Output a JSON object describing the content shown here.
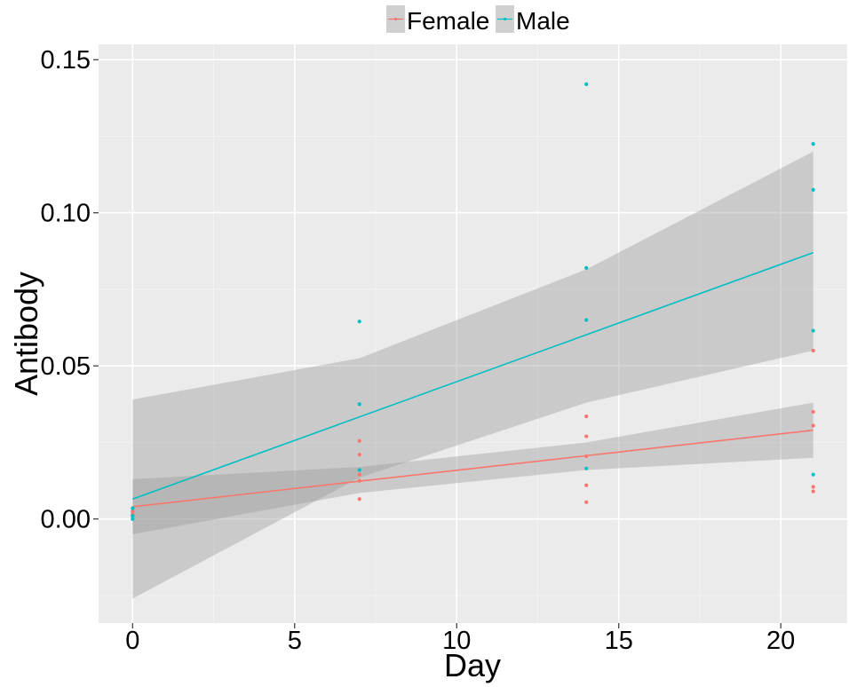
{
  "chart_data": {
    "type": "scatter",
    "title": "",
    "xlabel": "Day",
    "ylabel": "Antibody",
    "xlim": [
      -1.05,
      22.05
    ],
    "ylim": [
      -0.034,
      0.155
    ],
    "x_ticks": [
      0,
      5,
      10,
      15,
      20
    ],
    "x_tick_labels": [
      "0",
      "5",
      "10",
      "15",
      "20"
    ],
    "y_ticks": [
      0.0,
      0.05,
      0.1,
      0.15
    ],
    "y_tick_labels": [
      "0.00",
      "0.05",
      "0.10",
      "0.15"
    ],
    "x_minor": [
      2.5,
      7.5,
      12.5,
      17.5
    ],
    "y_minor": [
      -0.025,
      0.025,
      0.075,
      0.125
    ],
    "grid": true,
    "legend": {
      "position": "top",
      "entries": [
        "Female",
        "Male"
      ]
    },
    "series": [
      {
        "name": "Female",
        "color": "#F8766D",
        "points": [
          [
            0,
            0.0025
          ],
          [
            0,
            0.0015
          ],
          [
            0,
            0.001
          ],
          [
            7,
            0.0255
          ],
          [
            7,
            0.021
          ],
          [
            7,
            0.0145
          ],
          [
            7,
            0.0125
          ],
          [
            7,
            0.0065
          ],
          [
            14,
            0.0335
          ],
          [
            14,
            0.027
          ],
          [
            14,
            0.0205
          ],
          [
            14,
            0.011
          ],
          [
            14,
            0.0055
          ],
          [
            21,
            0.055
          ],
          [
            21,
            0.035
          ],
          [
            21,
            0.0305
          ],
          [
            21,
            0.0105
          ],
          [
            21,
            0.009
          ]
        ],
        "fit": {
          "x": [
            0,
            21
          ],
          "y": [
            0.004,
            0.029
          ]
        },
        "ci": {
          "x": [
            0,
            7,
            14,
            21
          ],
          "lower": [
            -0.005,
            0.0085,
            0.016,
            0.02
          ],
          "upper": [
            0.013,
            0.017,
            0.025,
            0.038
          ]
        }
      },
      {
        "name": "Male",
        "color": "#00BFC4",
        "points": [
          [
            0,
            0.0035
          ],
          [
            0,
            0.001
          ],
          [
            0,
            0.0
          ],
          [
            7,
            0.0645
          ],
          [
            7,
            0.0375
          ],
          [
            7,
            0.016
          ],
          [
            14,
            0.142
          ],
          [
            14,
            0.082
          ],
          [
            14,
            0.065
          ],
          [
            14,
            0.0165
          ],
          [
            21,
            0.1225
          ],
          [
            21,
            0.1075
          ],
          [
            21,
            0.0615
          ],
          [
            21,
            0.0145
          ]
        ],
        "fit": {
          "x": [
            0,
            21
          ],
          "y": [
            0.0065,
            0.087
          ]
        },
        "ci": {
          "x": [
            0,
            7,
            14,
            21
          ],
          "lower": [
            -0.026,
            0.0135,
            0.038,
            0.055
          ],
          "upper": [
            0.039,
            0.0525,
            0.0815,
            0.12
          ]
        }
      }
    ]
  }
}
